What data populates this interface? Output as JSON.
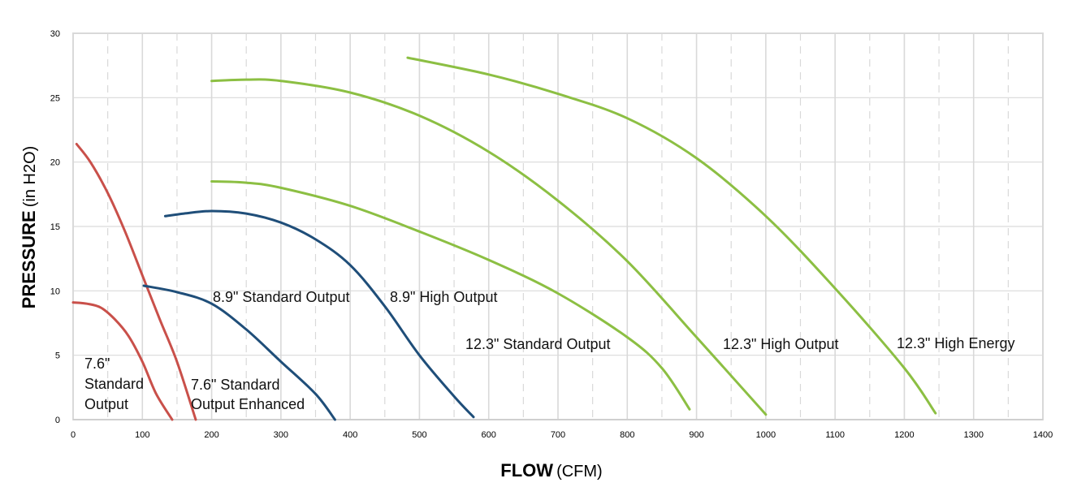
{
  "chart_data": {
    "type": "line",
    "xlabel_bold": "FLOW",
    "xlabel_unit": "(CFM)",
    "ylabel_bold": "PRESSURE",
    "ylabel_unit": "(in H2O)",
    "xlim": [
      0,
      1400
    ],
    "ylim": [
      0,
      30
    ],
    "x_ticks": [
      0,
      100,
      200,
      300,
      400,
      500,
      600,
      700,
      800,
      900,
      1000,
      1100,
      1200,
      1300,
      1400
    ],
    "y_ticks": [
      0,
      5,
      10,
      15,
      20,
      25,
      30
    ],
    "grid": true,
    "colors": {
      "red": "#C9504A",
      "blue": "#1F4E79",
      "green": "#8CBF43",
      "grid": "#d9d9d9"
    },
    "series": [
      {
        "label_lines": [
          "7.6\"",
          "Standard",
          "Output"
        ],
        "color": "red",
        "points": [
          [
            0,
            9.1
          ],
          [
            20,
            9.0
          ],
          [
            40,
            8.7
          ],
          [
            60,
            7.8
          ],
          [
            80,
            6.5
          ],
          [
            100,
            4.5
          ],
          [
            120,
            2.0
          ],
          [
            143,
            0
          ]
        ]
      },
      {
        "label_lines": [
          "7.6\" Standard",
          "Output Enhanced"
        ],
        "color": "red",
        "points": [
          [
            5,
            21.4
          ],
          [
            25,
            20.0
          ],
          [
            50,
            17.6
          ],
          [
            75,
            14.6
          ],
          [
            100,
            11.2
          ],
          [
            125,
            7.8
          ],
          [
            150,
            4.5
          ],
          [
            177,
            0
          ]
        ]
      },
      {
        "label_lines": [
          "8.9\" Standard  Output"
        ],
        "color": "blue",
        "points": [
          [
            102,
            10.4
          ],
          [
            150,
            9.9
          ],
          [
            200,
            9.0
          ],
          [
            250,
            7.0
          ],
          [
            300,
            4.5
          ],
          [
            350,
            2.0
          ],
          [
            378,
            0
          ]
        ]
      },
      {
        "label_lines": [
          "8.9\" High Output"
        ],
        "color": "blue",
        "points": [
          [
            133,
            15.8
          ],
          [
            160,
            16.0
          ],
          [
            200,
            16.2
          ],
          [
            250,
            16.0
          ],
          [
            300,
            15.3
          ],
          [
            350,
            14.0
          ],
          [
            400,
            12.0
          ],
          [
            450,
            8.8
          ],
          [
            500,
            5.0
          ],
          [
            550,
            1.8
          ],
          [
            578,
            0.2
          ]
        ]
      },
      {
        "label_lines": [
          "12.3\" Standard  Output"
        ],
        "color": "green",
        "points": [
          [
            200,
            18.5
          ],
          [
            250,
            18.4
          ],
          [
            300,
            18.0
          ],
          [
            400,
            16.6
          ],
          [
            500,
            14.6
          ],
          [
            600,
            12.4
          ],
          [
            700,
            9.8
          ],
          [
            800,
            6.4
          ],
          [
            850,
            4.0
          ],
          [
            890,
            0.8
          ]
        ]
      },
      {
        "label_lines": [
          "12.3\" High Output"
        ],
        "color": "green",
        "points": [
          [
            200,
            26.3
          ],
          [
            250,
            26.4
          ],
          [
            300,
            26.3
          ],
          [
            400,
            25.4
          ],
          [
            500,
            23.6
          ],
          [
            600,
            20.8
          ],
          [
            700,
            17.0
          ],
          [
            800,
            12.3
          ],
          [
            900,
            6.4
          ],
          [
            1000,
            0.4
          ]
        ]
      },
      {
        "label_lines": [
          "12.3\" High Energy"
        ],
        "color": "green",
        "points": [
          [
            483,
            28.1
          ],
          [
            600,
            26.8
          ],
          [
            700,
            25.3
          ],
          [
            800,
            23.4
          ],
          [
            900,
            20.3
          ],
          [
            1000,
            15.8
          ],
          [
            1100,
            10.2
          ],
          [
            1200,
            4.0
          ],
          [
            1245,
            0.5
          ]
        ]
      }
    ]
  }
}
